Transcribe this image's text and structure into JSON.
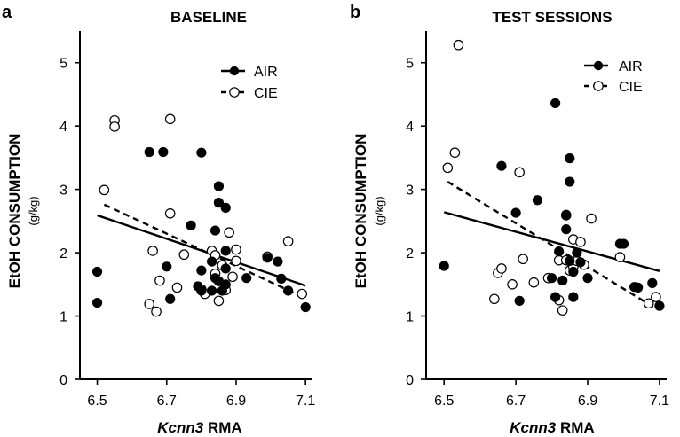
{
  "chart_data": [
    {
      "type": "scatter",
      "panel_label": "a",
      "title": "BASELINE",
      "ylabel": "EtOH CONSUMPTION",
      "ylabel_unit": "(g/kg)",
      "xlabel_gene": "Kcnn3",
      "xlabel_suffix": " RMA",
      "xlim": [
        6.45,
        7.12
      ],
      "ylim": [
        0,
        5.5
      ],
      "xticks": [
        6.5,
        6.7,
        6.9,
        7.1
      ],
      "xtick_labels": [
        "6.5",
        "6.7",
        "6.9",
        "7.1"
      ],
      "yticks": [
        0,
        1,
        2,
        3,
        4,
        5
      ],
      "ytick_labels": [
        "0",
        "1",
        "2",
        "3",
        "4",
        "5"
      ],
      "legend_position": "top-right",
      "series": [
        {
          "name": "AIR",
          "marker": "filled-circle",
          "line_style": "solid",
          "trend": [
            [
              6.5,
              2.59
            ],
            [
              7.1,
              1.48
            ]
          ],
          "points": [
            [
              6.5,
              1.7
            ],
            [
              6.5,
              1.21
            ],
            [
              6.65,
              3.59
            ],
            [
              6.69,
              3.59
            ],
            [
              6.7,
              1.78
            ],
            [
              6.71,
              1.27
            ],
            [
              6.77,
              2.43
            ],
            [
              6.79,
              1.47
            ],
            [
              6.8,
              3.58
            ],
            [
              6.8,
              1.72
            ],
            [
              6.8,
              1.4
            ],
            [
              6.83,
              1.86
            ],
            [
              6.83,
              1.4
            ],
            [
              6.84,
              2.35
            ],
            [
              6.84,
              1.6
            ],
            [
              6.85,
              3.05
            ],
            [
              6.85,
              2.79
            ],
            [
              6.85,
              1.55
            ],
            [
              6.86,
              1.4
            ],
            [
              6.87,
              2.71
            ],
            [
              6.87,
              1.75
            ],
            [
              6.87,
              1.5
            ],
            [
              6.87,
              2.03
            ],
            [
              6.93,
              1.6
            ],
            [
              6.99,
              1.92
            ],
            [
              7.02,
              1.86
            ],
            [
              7.03,
              1.59
            ],
            [
              7.05,
              1.4
            ],
            [
              7.1,
              1.14
            ]
          ]
        },
        {
          "name": "CIE",
          "marker": "open-circle",
          "line_style": "dashed",
          "trend": [
            [
              6.52,
              2.76
            ],
            [
              7.1,
              1.28
            ]
          ],
          "points": [
            [
              6.52,
              2.99
            ],
            [
              6.55,
              4.09
            ],
            [
              6.55,
              3.99
            ],
            [
              6.65,
              1.19
            ],
            [
              6.66,
              2.03
            ],
            [
              6.67,
              1.07
            ],
            [
              6.68,
              1.56
            ],
            [
              6.71,
              4.11
            ],
            [
              6.71,
              2.62
            ],
            [
              6.73,
              1.45
            ],
            [
              6.75,
              1.97
            ],
            [
              6.8,
              1.42
            ],
            [
              6.81,
              1.35
            ],
            [
              6.83,
              2.03
            ],
            [
              6.84,
              1.96
            ],
            [
              6.84,
              1.67
            ],
            [
              6.85,
              1.24
            ],
            [
              6.86,
              1.8
            ],
            [
              6.87,
              1.41
            ],
            [
              6.88,
              2.32
            ],
            [
              6.89,
              1.62
            ],
            [
              6.9,
              2.05
            ],
            [
              6.9,
              1.87
            ],
            [
              6.99,
              1.94
            ],
            [
              7.05,
              2.18
            ],
            [
              7.09,
              1.35
            ]
          ]
        }
      ]
    },
    {
      "type": "scatter",
      "panel_label": "b",
      "title": "TEST SESSIONS",
      "ylabel": "EtOH CONSUMPTION",
      "ylabel_unit": "(g/kg)",
      "xlabel_gene": "Kcnn3",
      "xlabel_suffix": " RMA",
      "xlim": [
        6.45,
        7.12
      ],
      "ylim": [
        0,
        5.5
      ],
      "xticks": [
        6.5,
        6.7,
        6.9,
        7.1
      ],
      "xtick_labels": [
        "6.5",
        "6.7",
        "6.9",
        "7.1"
      ],
      "yticks": [
        0,
        1,
        2,
        3,
        4,
        5
      ],
      "ytick_labels": [
        "0",
        "1",
        "2",
        "3",
        "4",
        "5"
      ],
      "legend_position": "top-right",
      "series": [
        {
          "name": "AIR",
          "marker": "filled-circle",
          "line_style": "solid",
          "trend": [
            [
              6.5,
              2.64
            ],
            [
              7.1,
              1.71
            ]
          ],
          "points": [
            [
              6.5,
              1.79
            ],
            [
              6.66,
              3.37
            ],
            [
              6.7,
              2.63
            ],
            [
              6.71,
              1.24
            ],
            [
              6.76,
              2.83
            ],
            [
              6.8,
              1.6
            ],
            [
              6.81,
              4.36
            ],
            [
              6.81,
              1.3
            ],
            [
              6.82,
              2.02
            ],
            [
              6.83,
              1.56
            ],
            [
              6.84,
              2.6
            ],
            [
              6.84,
              2.37
            ],
            [
              6.85,
              3.49
            ],
            [
              6.85,
              3.12
            ],
            [
              6.85,
              1.87
            ],
            [
              6.86,
              1.7
            ],
            [
              6.86,
              1.3
            ],
            [
              6.87,
              2.0
            ],
            [
              6.88,
              1.85
            ],
            [
              6.9,
              1.6
            ],
            [
              6.99,
              2.14
            ],
            [
              7.0,
              2.14
            ],
            [
              7.03,
              1.46
            ],
            [
              7.04,
              1.45
            ],
            [
              7.08,
              1.52
            ],
            [
              7.1,
              1.16
            ]
          ]
        },
        {
          "name": "CIE",
          "marker": "open-circle",
          "line_style": "dashed",
          "trend": [
            [
              6.51,
              3.12
            ],
            [
              7.09,
              1.12
            ]
          ],
          "points": [
            [
              6.51,
              3.34
            ],
            [
              6.53,
              3.58
            ],
            [
              6.54,
              5.28
            ],
            [
              6.64,
              1.27
            ],
            [
              6.65,
              1.68
            ],
            [
              6.66,
              1.75
            ],
            [
              6.69,
              1.5
            ],
            [
              6.71,
              3.27
            ],
            [
              6.72,
              1.9
            ],
            [
              6.75,
              1.53
            ],
            [
              6.79,
              1.6
            ],
            [
              6.82,
              1.88
            ],
            [
              6.82,
              1.25
            ],
            [
              6.83,
              1.09
            ],
            [
              6.84,
              2.59
            ],
            [
              6.84,
              1.88
            ],
            [
              6.85,
              1.72
            ],
            [
              6.86,
              2.21
            ],
            [
              6.86,
              1.77
            ],
            [
              6.87,
              1.87
            ],
            [
              6.88,
              2.17
            ],
            [
              6.89,
              1.81
            ],
            [
              6.91,
              2.54
            ],
            [
              6.99,
              1.93
            ],
            [
              7.07,
              1.2
            ],
            [
              7.09,
              1.3
            ]
          ]
        }
      ]
    }
  ]
}
